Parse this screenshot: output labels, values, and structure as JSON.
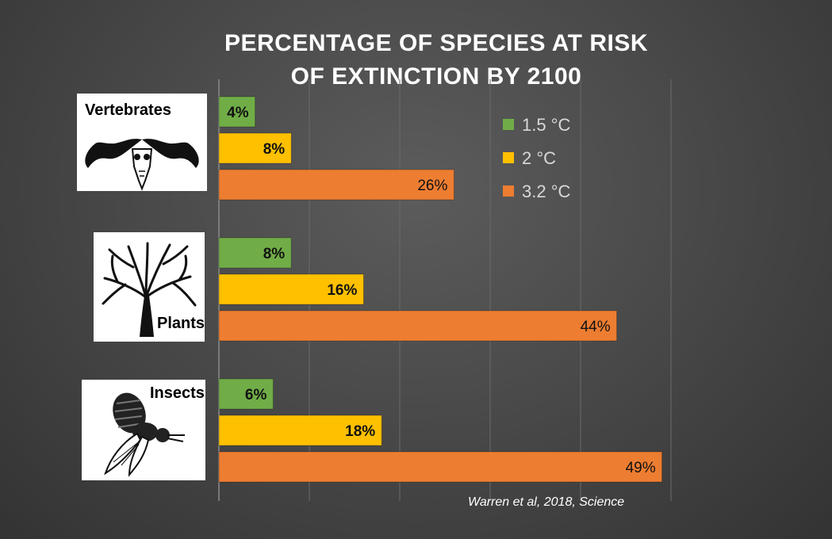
{
  "chart_data": {
    "type": "bar",
    "orientation": "horizontal",
    "title_lines": [
      "PERCENTAGE OF SPECIES AT RISK",
      "OF EXTINCTION BY 2100"
    ],
    "categories": [
      "Vertebrates",
      "Plants",
      "Insects"
    ],
    "series": [
      {
        "name": "1.5 °C",
        "color": "#70ad47",
        "values": [
          4,
          8,
          6
        ],
        "labels": [
          "4%",
          "8%",
          "6%"
        ]
      },
      {
        "name": "2 °C",
        "color": "#ffc000",
        "values": [
          8,
          16,
          18
        ],
        "labels": [
          "8%",
          "16%",
          "18%"
        ]
      },
      {
        "name": "3.2 °C",
        "color": "#ed7d31",
        "values": [
          26,
          44,
          49
        ],
        "labels": [
          "26%",
          "44%",
          "49%"
        ]
      }
    ],
    "xlim": [
      0,
      50
    ],
    "grid": "vertical",
    "legend_position": "top-right",
    "source": "Warren et al, 2018, Science"
  },
  "icons": [
    "ram-skull-icon",
    "tree-icon",
    "bee-icon"
  ]
}
